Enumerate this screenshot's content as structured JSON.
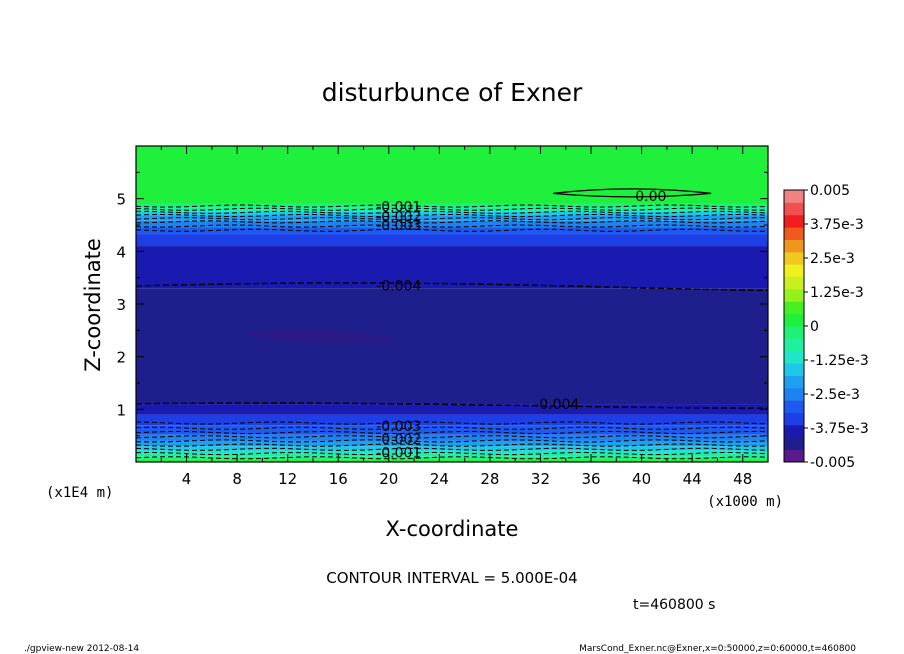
{
  "chart_data": {
    "type": "heatmap",
    "title": "disturbunce of Exner",
    "xlabel": "X-coordinate",
    "ylabel": "Z-coordinate",
    "x_unit": "(x1000 m)",
    "y_unit": "(x1E4 m)",
    "xlim": [
      0,
      50
    ],
    "ylim": [
      0,
      6
    ],
    "x_ticks": [
      4,
      8,
      12,
      16,
      20,
      24,
      28,
      32,
      36,
      40,
      44,
      48
    ],
    "y_ticks": [
      1,
      2,
      3,
      4,
      5
    ],
    "contour_interval_text": "CONTOUR INTERVAL = 5.000E-04",
    "time_text": "t=460800 s",
    "footer_left": "./gpview-new   2012-08-14",
    "footer_right": "MarsCond_Exner.nc@Exner,x=0:50000,z=0:60000,t=460800",
    "colorbar": {
      "min": -0.005,
      "max": 0.005,
      "labels": [
        "0.005",
        "3.75e-3",
        "2.5e-3",
        "1.25e-3",
        "0",
        "-1.25e-3",
        "-2.5e-3",
        "-3.75e-3",
        "-0.005"
      ],
      "colors": [
        "#5a1a8c",
        "#1e1e8c",
        "#1a1ab0",
        "#1e3ee6",
        "#1e5af0",
        "#1e82f0",
        "#1ea0f0",
        "#1ec8e6",
        "#1ee6c8",
        "#1ef0a0",
        "#1ef078",
        "#1ef03c",
        "#46f01e",
        "#96f01e",
        "#c8f01e",
        "#f0f01e",
        "#f0c81e",
        "#f0961e",
        "#f05a1e",
        "#f01e1e",
        "#f05050",
        "#f08282"
      ]
    },
    "bands": [
      {
        "z": [
          0.0,
          0.05
        ],
        "color": "#1ef03c"
      },
      {
        "z": [
          0.05,
          0.1
        ],
        "color": "#1ef078"
      },
      {
        "z": [
          0.1,
          0.16
        ],
        "color": "#1ef0a0"
      },
      {
        "z": [
          0.16,
          0.22
        ],
        "color": "#1ee6c8"
      },
      {
        "z": [
          0.22,
          0.3
        ],
        "color": "#1ec8e6"
      },
      {
        "z": [
          0.3,
          0.4
        ],
        "color": "#1ea0f0"
      },
      {
        "z": [
          0.4,
          0.52
        ],
        "color": "#1e82f0"
      },
      {
        "z": [
          0.52,
          0.7
        ],
        "color": "#1e5af0"
      },
      {
        "z": [
          0.7,
          0.9
        ],
        "color": "#1e3ee6"
      },
      {
        "z": [
          0.9,
          1.1
        ],
        "color": "#1a1ab0"
      },
      {
        "z": [
          1.1,
          3.3
        ],
        "color": "#1e1e8c"
      },
      {
        "z": [
          3.3,
          4.1
        ],
        "color": "#1a1ab0"
      },
      {
        "z": [
          4.1,
          4.32
        ],
        "color": "#1e3ee6"
      },
      {
        "z": [
          4.32,
          4.46
        ],
        "color": "#1e5af0"
      },
      {
        "z": [
          4.46,
          4.58
        ],
        "color": "#1e82f0"
      },
      {
        "z": [
          4.58,
          4.68
        ],
        "color": "#1ea0f0"
      },
      {
        "z": [
          4.68,
          4.76
        ],
        "color": "#1ec8e6"
      },
      {
        "z": [
          4.76,
          4.84
        ],
        "color": "#1ef0a0"
      },
      {
        "z": [
          4.84,
          4.9
        ],
        "color": "#1ef078"
      },
      {
        "z": [
          4.9,
          6.0
        ],
        "color": "#1ef03c"
      }
    ],
    "dashed_levels_z": [
      0.08,
      0.16,
      0.24,
      0.32,
      0.4,
      0.48,
      0.56,
      0.64,
      0.74,
      4.4,
      4.48,
      4.56,
      4.62,
      4.68,
      4.74,
      4.8,
      4.86
    ],
    "contour_labels": [
      {
        "text": "0.00",
        "x": 39.5,
        "z": 5.05
      },
      {
        "text": "-0.001",
        "x": 19.0,
        "z": 4.85
      },
      {
        "text": "-0.002",
        "x": 19.0,
        "z": 4.66
      },
      {
        "text": "-0.003",
        "x": 19.0,
        "z": 4.5
      },
      {
        "text": "-0.004",
        "x": 19.0,
        "z": 3.35
      },
      {
        "text": "-0.004",
        "x": 31.5,
        "z": 1.1
      },
      {
        "text": "-0.003",
        "x": 19.0,
        "z": 0.68
      },
      {
        "text": "-0.002",
        "x": 19.0,
        "z": 0.44
      },
      {
        "text": "-0.001",
        "x": 19.0,
        "z": 0.18
      }
    ],
    "closed_contour": {
      "label": "0.00",
      "x": [
        33,
        45.5
      ],
      "z": 5.1
    }
  }
}
